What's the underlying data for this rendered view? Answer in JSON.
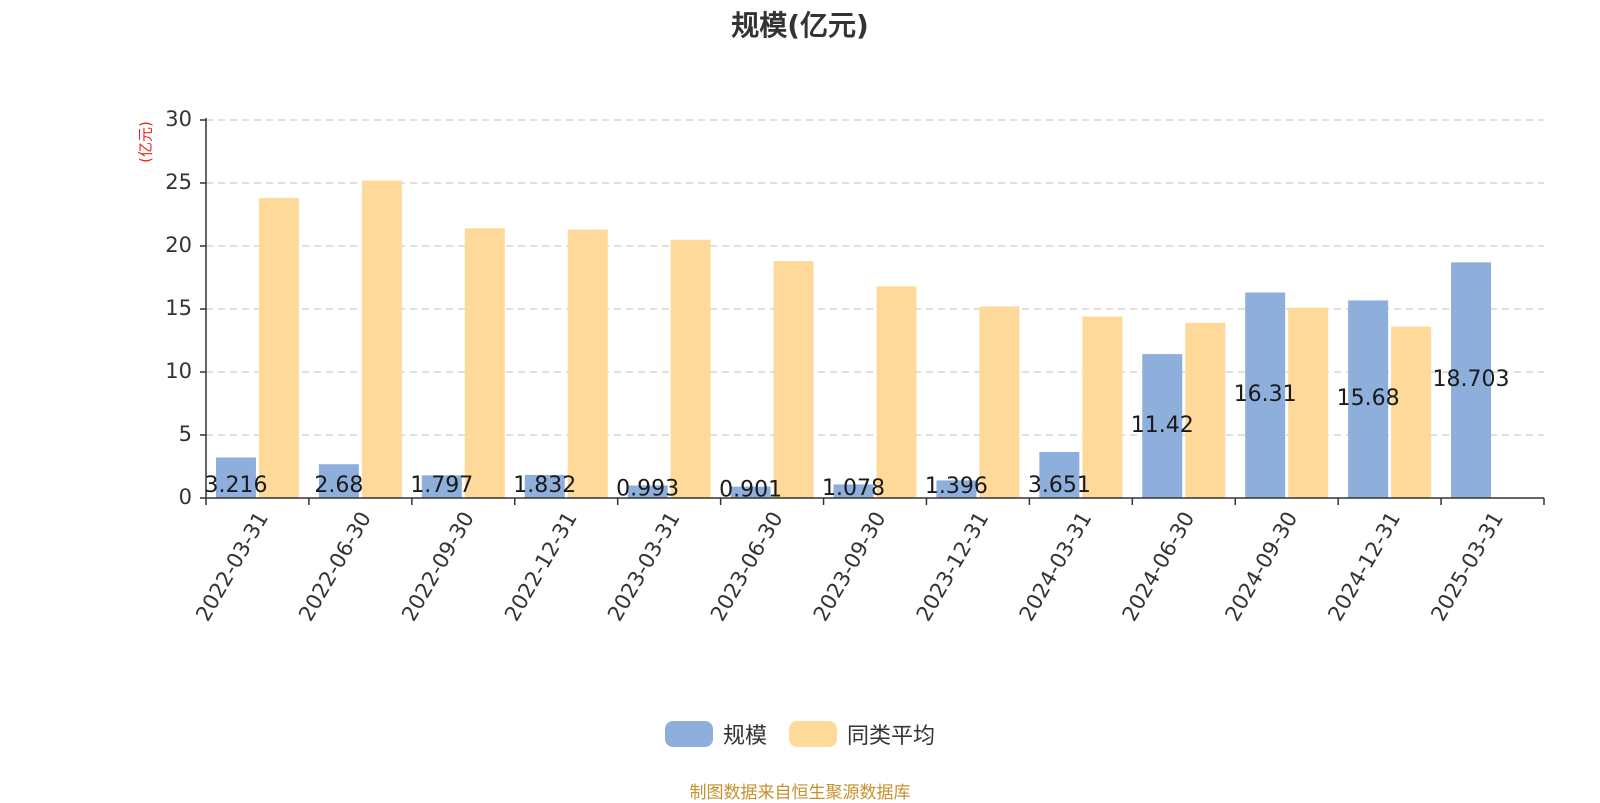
{
  "chart_data": {
    "type": "bar",
    "title": "规模(亿元)",
    "ylabel": "(亿元)",
    "xlabel": "",
    "ylim": [
      0,
      30
    ],
    "yticks": [
      0,
      5,
      10,
      15,
      20,
      25,
      30
    ],
    "grid": true,
    "legend_position": "bottom-center",
    "categories": [
      "2022-03-31",
      "2022-06-30",
      "2022-09-30",
      "2022-12-31",
      "2023-03-31",
      "2023-06-30",
      "2023-09-30",
      "2023-12-31",
      "2024-03-31",
      "2024-06-30",
      "2024-09-30",
      "2024-12-31",
      "2025-03-31"
    ],
    "series": [
      {
        "name": "规模",
        "color": "#8eaedb",
        "values": [
          3.216,
          2.68,
          1.797,
          1.832,
          0.993,
          0.901,
          1.078,
          1.396,
          3.651,
          11.42,
          16.31,
          15.68,
          18.703
        ],
        "data_labels": [
          "3.216",
          "2.68",
          "1.797",
          "1.832",
          "0.993",
          "0.901",
          "1.078",
          "1.396",
          "3.651",
          "11.42",
          "16.31",
          "15.68",
          "18.703"
        ]
      },
      {
        "name": "同类平均",
        "color": "#ffd99a",
        "values": [
          23.8,
          25.2,
          21.4,
          21.3,
          20.5,
          18.8,
          16.8,
          15.2,
          14.4,
          13.9,
          15.1,
          13.6,
          null
        ]
      }
    ]
  },
  "footer": {
    "source_note": "制图数据来自恒生聚源数据库"
  },
  "colors": {
    "axis_label_red": "#e8261c",
    "source_note": "#c8902a",
    "grid": "#cccccc",
    "axis": "#333333"
  }
}
